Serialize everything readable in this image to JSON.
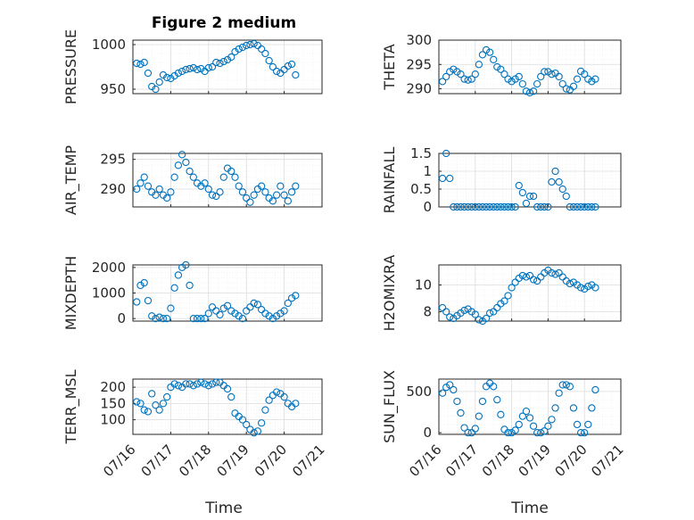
{
  "figure": {
    "title": "Figure 2 medium",
    "marker_color": "#0072BD"
  },
  "chart_data": [
    {
      "type": "scatter",
      "id": "pressure",
      "title": "Figure 2 medium",
      "ylabel": "PRESSURE",
      "ylim": [
        945,
        1005
      ],
      "yticks": [
        950,
        1000
      ],
      "x": [
        0.1,
        0.2,
        0.3,
        0.4,
        0.5,
        0.6,
        0.7,
        0.8,
        0.9,
        1.0,
        1.1,
        1.2,
        1.3,
        1.4,
        1.5,
        1.6,
        1.7,
        1.8,
        1.9,
        2.0,
        2.1,
        2.2,
        2.3,
        2.4,
        2.5,
        2.6,
        2.7,
        2.8,
        2.9,
        3.0,
        3.1,
        3.2,
        3.3,
        3.4,
        3.5,
        3.6,
        3.7,
        3.8,
        3.9,
        4.0,
        4.1,
        4.2,
        4.3
      ],
      "y": [
        979,
        978,
        980,
        968,
        953,
        950,
        958,
        966,
        963,
        962,
        965,
        968,
        970,
        972,
        973,
        974,
        972,
        973,
        970,
        974,
        975,
        980,
        979,
        981,
        983,
        986,
        992,
        995,
        997,
        999,
        1000,
        1001,
        999,
        995,
        990,
        982,
        975,
        970,
        968,
        972,
        976,
        978,
        966
      ]
    },
    {
      "type": "scatter",
      "id": "theta",
      "ylabel": "THETA",
      "ylim": [
        289,
        300
      ],
      "yticks": [
        290,
        295,
        300
      ],
      "x": [
        0.1,
        0.2,
        0.3,
        0.4,
        0.5,
        0.6,
        0.7,
        0.8,
        0.9,
        1.0,
        1.1,
        1.2,
        1.3,
        1.4,
        1.5,
        1.6,
        1.7,
        1.8,
        1.9,
        2.0,
        2.1,
        2.2,
        2.3,
        2.4,
        2.5,
        2.6,
        2.7,
        2.8,
        2.9,
        3.0,
        3.1,
        3.2,
        3.3,
        3.4,
        3.5,
        3.6,
        3.7,
        3.8,
        3.9,
        4.0,
        4.1,
        4.2,
        4.3
      ],
      "y": [
        291.5,
        292.5,
        293.5,
        294,
        293.5,
        293,
        292,
        291.8,
        292,
        293,
        295,
        297,
        298,
        297.5,
        296,
        294.5,
        294,
        293,
        292,
        291.5,
        292,
        292.5,
        291,
        289.5,
        289.2,
        289.5,
        291,
        292.5,
        293.5,
        293.5,
        293,
        293.2,
        292.5,
        291,
        290,
        289.8,
        290.5,
        292,
        293.6,
        293,
        292,
        291.5,
        292
      ]
    },
    {
      "type": "scatter",
      "id": "air_temp",
      "ylabel": "AIR_TEMP",
      "ylim": [
        287,
        296
      ],
      "yticks": [
        290,
        295
      ],
      "x": [
        0.1,
        0.2,
        0.3,
        0.4,
        0.5,
        0.6,
        0.7,
        0.8,
        0.9,
        1.0,
        1.1,
        1.2,
        1.3,
        1.4,
        1.5,
        1.6,
        1.7,
        1.8,
        1.9,
        2.0,
        2.1,
        2.2,
        2.3,
        2.4,
        2.5,
        2.6,
        2.7,
        2.8,
        2.9,
        3.0,
        3.1,
        3.2,
        3.3,
        3.4,
        3.5,
        3.6,
        3.7,
        3.8,
        3.9,
        4.0,
        4.1,
        4.2,
        4.3
      ],
      "y": [
        290,
        291,
        292,
        290.5,
        289.5,
        289,
        290,
        289,
        288.5,
        289.5,
        292,
        294,
        295.8,
        294.5,
        293,
        292,
        291,
        290.5,
        291,
        290,
        289,
        288.8,
        289.5,
        292,
        293.5,
        293,
        292,
        290.5,
        289.5,
        288.5,
        287.8,
        289,
        290,
        290.5,
        289.5,
        288.5,
        288,
        289,
        290.5,
        289,
        288,
        289.5,
        290.5
      ]
    },
    {
      "type": "scatter",
      "id": "rainfall",
      "ylabel": "RAINFALL",
      "ylim": [
        0,
        1.5
      ],
      "yticks": [
        0,
        0.5,
        1,
        1.5
      ],
      "x": [
        0.1,
        0.2,
        0.3,
        0.4,
        0.5,
        0.6,
        0.7,
        0.8,
        0.9,
        1.0,
        1.1,
        1.2,
        1.3,
        1.4,
        1.5,
        1.6,
        1.7,
        1.8,
        1.9,
        2.0,
        2.1,
        2.2,
        2.3,
        2.4,
        2.5,
        2.6,
        2.7,
        2.8,
        2.9,
        3.0,
        3.1,
        3.2,
        3.3,
        3.4,
        3.5,
        3.6,
        3.7,
        3.8,
        3.9,
        4.0,
        4.1,
        4.2,
        4.3
      ],
      "y": [
        0.8,
        1.5,
        0.8,
        0,
        0,
        0,
        0,
        0,
        0,
        0,
        0,
        0,
        0,
        0,
        0,
        0,
        0,
        0,
        0,
        0,
        0,
        0.6,
        0.4,
        0.1,
        0.3,
        0.3,
        0,
        0,
        0,
        0,
        0.7,
        1.0,
        0.7,
        0.5,
        0.3,
        0,
        0,
        0,
        0,
        0,
        0,
        0,
        0
      ]
    },
    {
      "type": "scatter",
      "id": "mixdepth",
      "ylabel": "MIXDEPTH",
      "ylim": [
        -100,
        2100
      ],
      "yticks": [
        0,
        1000,
        2000
      ],
      "x": [
        0.1,
        0.2,
        0.3,
        0.4,
        0.5,
        0.6,
        0.7,
        0.8,
        0.9,
        1.0,
        1.1,
        1.2,
        1.3,
        1.4,
        1.5,
        1.6,
        1.7,
        1.8,
        1.9,
        2.0,
        2.1,
        2.2,
        2.3,
        2.4,
        2.5,
        2.6,
        2.7,
        2.8,
        2.9,
        3.0,
        3.1,
        3.2,
        3.3,
        3.4,
        3.5,
        3.6,
        3.7,
        3.8,
        3.9,
        4.0,
        4.1,
        4.2,
        4.3
      ],
      "y": [
        650,
        1300,
        1400,
        700,
        100,
        0,
        50,
        0,
        0,
        400,
        1200,
        1700,
        2000,
        2100,
        1300,
        0,
        0,
        0,
        0,
        200,
        450,
        300,
        150,
        400,
        500,
        300,
        200,
        100,
        0,
        300,
        450,
        600,
        550,
        350,
        200,
        100,
        0,
        100,
        200,
        300,
        600,
        800,
        900
      ]
    },
    {
      "type": "scatter",
      "id": "h2omixra",
      "ylabel": "H2OMIXRA",
      "ylim": [
        7.3,
        11.5
      ],
      "yticks": [
        8,
        10
      ],
      "x": [
        0.1,
        0.2,
        0.3,
        0.4,
        0.5,
        0.6,
        0.7,
        0.8,
        0.9,
        1.0,
        1.1,
        1.2,
        1.3,
        1.4,
        1.5,
        1.6,
        1.7,
        1.8,
        1.9,
        2.0,
        2.1,
        2.2,
        2.3,
        2.4,
        2.5,
        2.6,
        2.7,
        2.8,
        2.9,
        3.0,
        3.1,
        3.2,
        3.3,
        3.4,
        3.5,
        3.6,
        3.7,
        3.8,
        3.9,
        4.0,
        4.1,
        4.2,
        4.3
      ],
      "y": [
        8.3,
        8.0,
        7.6,
        7.5,
        7.7,
        7.9,
        8.1,
        8.2,
        8.0,
        7.8,
        7.4,
        7.3,
        7.5,
        7.9,
        8.0,
        8.3,
        8.6,
        8.8,
        9.2,
        9.8,
        10.2,
        10.5,
        10.7,
        10.6,
        10.7,
        10.4,
        10.3,
        10.6,
        10.9,
        11.1,
        10.9,
        10.8,
        10.9,
        10.6,
        10.3,
        10.1,
        10.2,
        10.0,
        9.8,
        9.7,
        9.9,
        10.0,
        9.8
      ]
    },
    {
      "type": "scatter",
      "id": "terr_msl",
      "ylabel": "TERR_MSL",
      "ylim": [
        55,
        225
      ],
      "yticks": [
        100,
        150,
        200
      ],
      "x": [
        0.1,
        0.2,
        0.3,
        0.4,
        0.5,
        0.6,
        0.7,
        0.8,
        0.9,
        1.0,
        1.1,
        1.2,
        1.3,
        1.4,
        1.5,
        1.6,
        1.7,
        1.8,
        1.9,
        2.0,
        2.1,
        2.2,
        2.3,
        2.4,
        2.5,
        2.6,
        2.7,
        2.8,
        2.9,
        3.0,
        3.1,
        3.2,
        3.3,
        3.4,
        3.5,
        3.6,
        3.7,
        3.8,
        3.9,
        4.0,
        4.1,
        4.2,
        4.3
      ],
      "y": [
        155,
        150,
        130,
        125,
        180,
        145,
        130,
        150,
        170,
        200,
        210,
        205,
        200,
        210,
        210,
        205,
        210,
        215,
        210,
        205,
        210,
        215,
        215,
        205,
        195,
        170,
        120,
        110,
        100,
        85,
        70,
        60,
        65,
        90,
        130,
        160,
        175,
        185,
        180,
        170,
        150,
        140,
        150
      ]
    },
    {
      "type": "scatter",
      "id": "sun_flux",
      "ylabel": "SUN_FLUX",
      "ylim": [
        -20,
        650
      ],
      "yticks": [
        0,
        500
      ],
      "x": [
        0.1,
        0.2,
        0.3,
        0.4,
        0.5,
        0.6,
        0.7,
        0.8,
        0.9,
        1.0,
        1.1,
        1.2,
        1.3,
        1.4,
        1.5,
        1.6,
        1.7,
        1.8,
        1.9,
        2.0,
        2.1,
        2.2,
        2.3,
        2.4,
        2.5,
        2.6,
        2.7,
        2.8,
        2.9,
        3.0,
        3.1,
        3.2,
        3.3,
        3.4,
        3.5,
        3.6,
        3.7,
        3.8,
        3.9,
        4.0,
        4.1,
        4.2,
        4.3
      ],
      "y": [
        480,
        550,
        580,
        520,
        380,
        240,
        60,
        0,
        0,
        50,
        200,
        380,
        560,
        600,
        560,
        400,
        220,
        40,
        0,
        0,
        30,
        100,
        200,
        260,
        180,
        80,
        0,
        0,
        20,
        80,
        160,
        300,
        480,
        580,
        580,
        560,
        300,
        100,
        0,
        0,
        100,
        300,
        520
      ]
    }
  ],
  "x_axis": {
    "xlim": [
      0,
      5
    ],
    "tick_labels": [
      "07/16",
      "07/17",
      "07/18",
      "07/19",
      "07/20",
      "07/21"
    ],
    "label": "Time"
  }
}
